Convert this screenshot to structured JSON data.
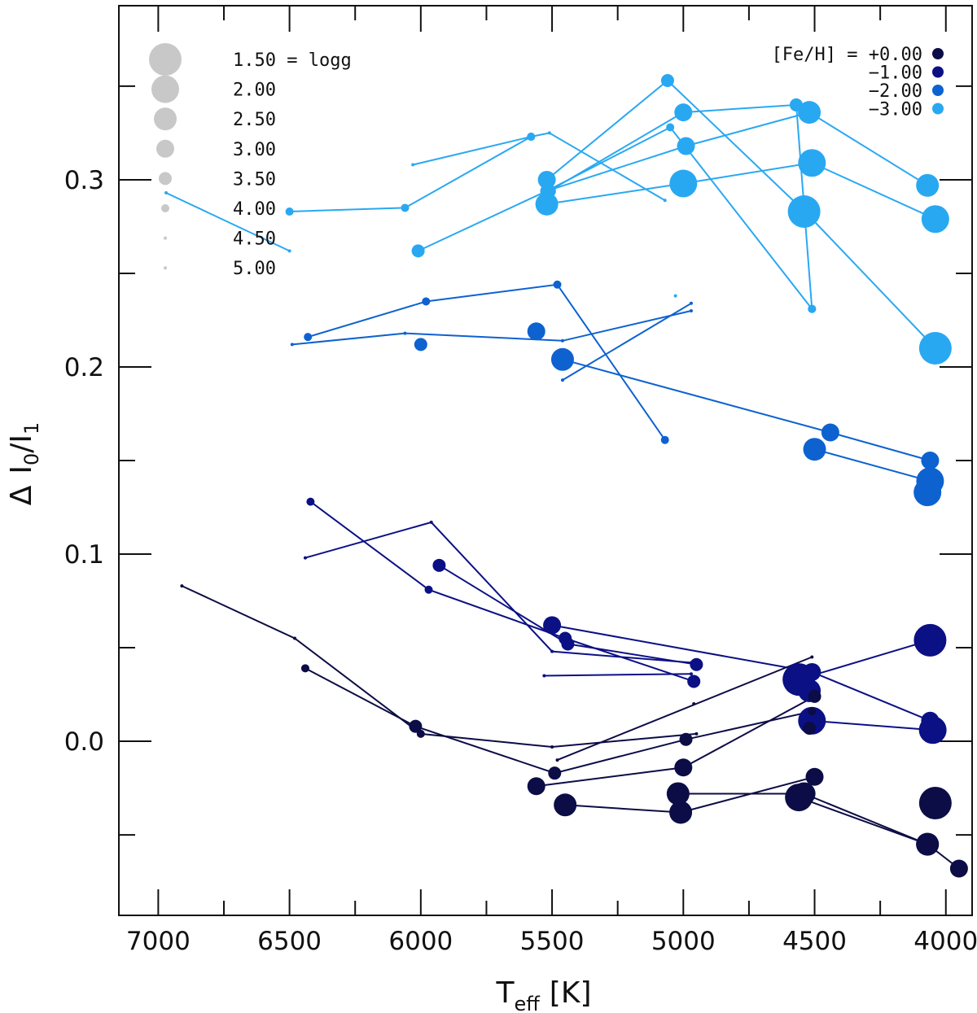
{
  "chart_data": {
    "type": "scatter",
    "title": "",
    "xlabel": {
      "main": "T",
      "sub": "eff",
      "unit": "[K]"
    },
    "ylabel": {
      "delta": "Δ",
      "i0": "I",
      "sub0": "0",
      "i1": "I",
      "sub1": "1"
    },
    "xlim": [
      7150,
      3900
    ],
    "ylim": [
      -0.093,
      0.393
    ],
    "x_ticks": [
      7000,
      6500,
      6000,
      5500,
      5000,
      4500,
      4000
    ],
    "x_tick_labels": [
      "7000",
      "6500",
      "6000",
      "5500",
      "5000",
      "4500",
      "4000"
    ],
    "x_minor_step": 250,
    "y_ticks": [
      0.0,
      0.1,
      0.2,
      0.3
    ],
    "y_tick_labels": [
      "0.0",
      "0.1",
      "0.2",
      "0.3"
    ],
    "y_minor_step": 0.05,
    "grid": false,
    "size_legend": {
      "title_suffix": "= logg",
      "entries": [
        {
          "logg": 1.5,
          "label": "1.50"
        },
        {
          "logg": 2.0,
          "label": "2.00"
        },
        {
          "logg": 2.5,
          "label": "2.50"
        },
        {
          "logg": 3.0,
          "label": "3.00"
        },
        {
          "logg": 3.5,
          "label": "3.50"
        },
        {
          "logg": 4.0,
          "label": "4.00"
        },
        {
          "logg": 4.5,
          "label": "4.50"
        },
        {
          "logg": 5.0,
          "label": "5.00"
        }
      ]
    },
    "color_legend": {
      "title": "[Fe/H] =",
      "placement": "top-right",
      "entries": [
        {
          "label": "+0.00",
          "color": "#0c0c46"
        },
        {
          "label": "−1.00",
          "color": "#0c1085"
        },
        {
          "label": "−2.00",
          "color": "#0d62d0"
        },
        {
          "label": "−3.00",
          "color": "#29a8f2"
        }
      ]
    },
    "series": [
      {
        "feh": "−3.00",
        "color": "#29a8f2",
        "lines": [
          [
            [
              6970,
              0.293,
              4.5
            ],
            [
              6500,
              0.262,
              4.5
            ]
          ],
          [
            [
              6500,
              0.283,
              4.0
            ],
            [
              6060,
              0.285,
              4.0
            ],
            [
              5580,
              0.323,
              4.0
            ],
            [
              5510,
              0.325,
              4.5
            ],
            [
              5070,
              0.289,
              4.5
            ]
          ],
          [
            [
              6030,
              0.308,
              4.5
            ],
            [
              5580,
              0.323,
              4.0
            ]
          ],
          [
            [
              6010,
              0.262,
              3.5
            ],
            [
              5520,
              0.294,
              3.5
            ],
            [
              4990,
              0.318,
              3.0
            ],
            [
              4520,
              0.336,
              2.5
            ],
            [
              4070,
              0.297,
              2.5
            ]
          ],
          [
            [
              5520,
              0.3,
              3.0
            ],
            [
              5060,
              0.353,
              3.5
            ],
            [
              4530,
              0.282,
              2.5
            ],
            [
              4040,
              0.21,
              1.5
            ]
          ],
          [
            [
              5520,
              0.287,
              2.5
            ],
            [
              5000,
              0.298,
              2.0
            ],
            [
              4510,
              0.309,
              2.0
            ],
            [
              4040,
              0.279,
              2.0
            ]
          ],
          [
            [
              5510,
              0.294,
              3.5
            ],
            [
              5000,
              0.336,
              3.0
            ],
            [
              4570,
              0.34,
              3.5
            ],
            [
              4510,
              0.231,
              4.0
            ]
          ],
          [
            [
              5520,
              0.294,
              3.5
            ],
            [
              5050,
              0.328,
              4.0
            ],
            [
              4510,
              0.231,
              4.0
            ]
          ]
        ],
        "extra_points": [
          [
            4540,
            0.283,
            1.5
          ],
          [
            5030,
            0.238,
            5.0
          ]
        ]
      },
      {
        "feh": "−2.00",
        "color": "#0d62d0",
        "lines": [
          [
            [
              6430,
              0.216,
              4.0
            ],
            [
              5980,
              0.235,
              4.0
            ],
            [
              5480,
              0.244,
              4.0
            ],
            [
              5070,
              0.161,
              4.0
            ]
          ],
          [
            [
              6490,
              0.212,
              4.5
            ],
            [
              6060,
              0.218,
              4.5
            ],
            [
              5460,
              0.214,
              4.5
            ],
            [
              4970,
              0.23,
              4.5
            ]
          ],
          [
            [
              5460,
              0.193,
              5.0
            ],
            [
              4970,
              0.234,
              5.0
            ]
          ],
          [
            [
              5460,
              0.204,
              2.5
            ],
            [
              4440,
              0.165,
              3.0
            ],
            [
              4060,
              0.15,
              3.0
            ]
          ],
          [
            [
              4500,
              0.156,
              2.5
            ],
            [
              4060,
              0.139,
              2.0
            ]
          ]
        ],
        "extra_points": [
          [
            6000,
            0.212,
            3.5
          ],
          [
            5560,
            0.219,
            3.0
          ],
          [
            4070,
            0.133,
            2.0
          ]
        ]
      },
      {
        "feh": "−1.00",
        "color": "#0c1085",
        "lines": [
          [
            [
              6420,
              0.128,
              4.0
            ],
            [
              5970,
              0.081,
              4.0
            ],
            [
              5450,
              0.055,
              3.5
            ],
            [
              4960,
              0.032,
              3.5
            ]
          ],
          [
            [
              6440,
              0.098,
              4.5
            ],
            [
              5960,
              0.117,
              4.5
            ],
            [
              5500,
              0.048,
              4.5
            ],
            [
              4970,
              0.042,
              4.5
            ]
          ],
          [
            [
              5930,
              0.094,
              3.5
            ],
            [
              5440,
              0.052,
              3.5
            ],
            [
              4950,
              0.041,
              3.5
            ]
          ],
          [
            [
              5500,
              0.062,
              3.0
            ],
            [
              4510,
              0.037,
              3.0
            ],
            [
              4060,
              0.011,
              3.0
            ]
          ],
          [
            [
              5530,
              0.035,
              5.0
            ],
            [
              4970,
              0.036,
              5.0
            ]
          ],
          [
            [
              4560,
              0.033,
              1.5
            ],
            [
              4060,
              0.054,
              1.5
            ]
          ],
          [
            [
              4510,
              0.011,
              2.0
            ],
            [
              4050,
              0.006,
              2.0
            ]
          ]
        ],
        "extra_points": [
          [
            4520,
            0.027,
            2.5
          ]
        ]
      },
      {
        "feh": "+0.00",
        "color": "#0c0c46",
        "lines": [
          [
            [
              6910,
              0.083,
              4.5
            ],
            [
              6480,
              0.055,
              4.5
            ],
            [
              6000,
              0.004,
              4.0
            ],
            [
              5500,
              -0.003,
              4.5
            ],
            [
              4950,
              0.004,
              4.5
            ]
          ],
          [
            [
              6440,
              0.039,
              4.0
            ],
            [
              6020,
              0.008,
              3.5
            ],
            [
              5490,
              -0.017,
              3.5
            ],
            [
              4990,
              0.001,
              3.5
            ],
            [
              4510,
              0.016,
              4.0
            ]
          ],
          [
            [
              5480,
              -0.01,
              5.0
            ],
            [
              4510,
              0.045,
              5.0
            ]
          ],
          [
            [
              5560,
              -0.024,
              3.0
            ],
            [
              5000,
              -0.014,
              3.0
            ],
            [
              4500,
              0.024,
              3.5
            ]
          ],
          [
            [
              5450,
              -0.034,
              2.5
            ],
            [
              5010,
              -0.038,
              2.5
            ],
            [
              4500,
              -0.019,
              3.0
            ]
          ],
          [
            [
              5020,
              -0.028,
              2.5
            ],
            [
              4540,
              -0.028,
              2.5
            ],
            [
              4070,
              -0.055,
              2.5
            ],
            [
              3950,
              -0.068,
              3.0
            ]
          ],
          [
            [
              4560,
              -0.03,
              2.0
            ],
            [
              4070,
              -0.055,
              2.5
            ]
          ]
        ],
        "extra_points": [
          [
            4960,
            0.02,
            5.0
          ],
          [
            4520,
            0.007,
            3.5
          ],
          [
            4040,
            -0.033,
            1.5
          ]
        ]
      }
    ]
  }
}
